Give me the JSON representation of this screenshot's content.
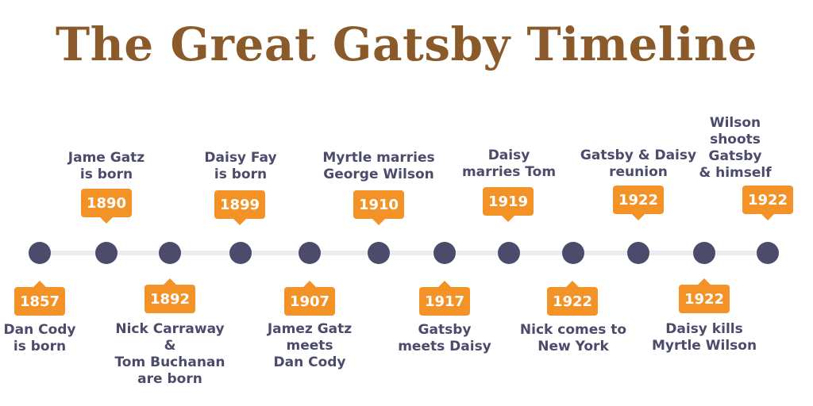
{
  "title": "The Great Gatsby Timeline",
  "colors": {
    "title": "#8B5A2B",
    "badge": "#F39227",
    "dot": "#4b4b6b",
    "text": "#4b4b6b",
    "line": "#ececf0"
  },
  "events": [
    {
      "year": "1857",
      "label": "Dan Cody\nis born"
    },
    {
      "year": "1890",
      "label": "Jame Gatz\nis born"
    },
    {
      "year": "1892",
      "label": "Nick Carraway\n&\nTom Buchanan\nare born"
    },
    {
      "year": "1899",
      "label": "Daisy Fay\nis born"
    },
    {
      "year": "1907",
      "label": "Jamez Gatz\nmeets\nDan Cody"
    },
    {
      "year": "1910",
      "label": "Myrtle marries\nGeorge Wilson"
    },
    {
      "year": "1917",
      "label": "Gatsby\nmeets Daisy"
    },
    {
      "year": "1919",
      "label": "Daisy\nmarries Tom"
    },
    {
      "year": "1922",
      "label": "Nick comes to\nNew York"
    },
    {
      "year": "1922",
      "label": "Gatsby & Daisy\nreunion"
    },
    {
      "year": "1922",
      "label": "Daisy kills\nMyrtle Wilson"
    },
    {
      "year": "1922",
      "label": "Wilson\nshoots\nGatsby\n& himself"
    }
  ]
}
